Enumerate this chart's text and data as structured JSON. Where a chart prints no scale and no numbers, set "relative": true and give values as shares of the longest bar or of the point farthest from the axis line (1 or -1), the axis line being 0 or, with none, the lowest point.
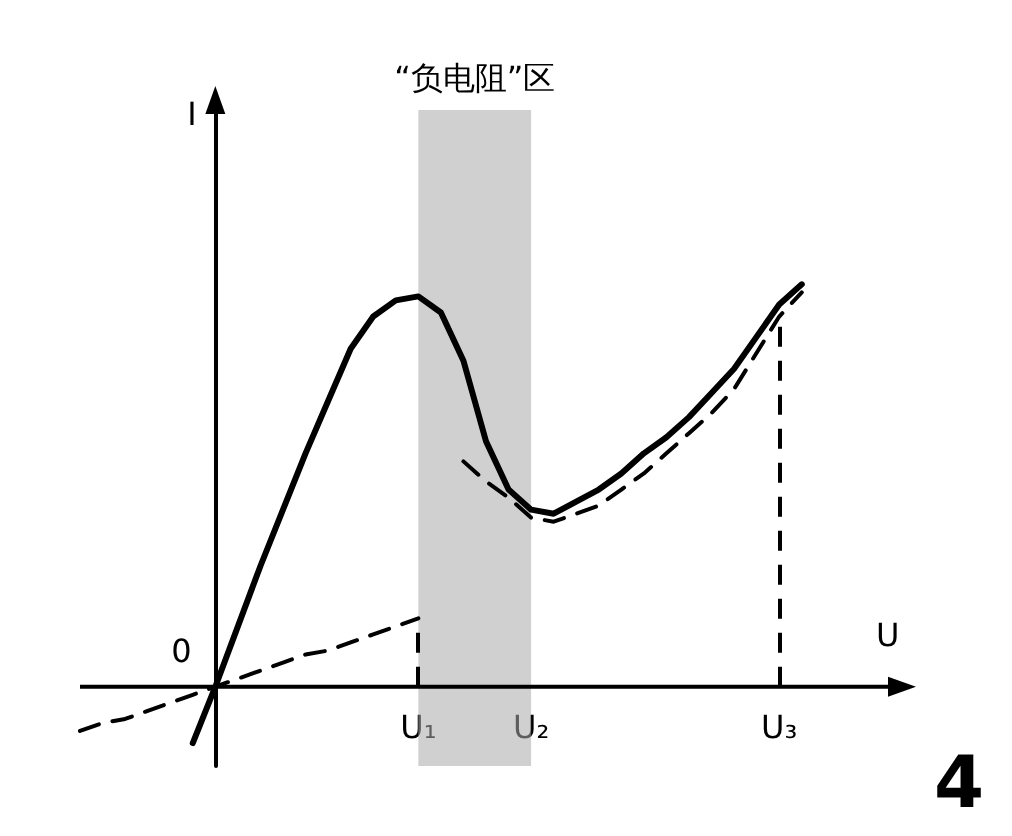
{
  "chart_data": {
    "type": "line",
    "relative": true,
    "xlabel": "U",
    "ylabel": "I",
    "categories": [
      null,
      null,
      null,
      null,
      null,
      null,
      null,
      null,
      null,
      null,
      null,
      null,
      null,
      null,
      null,
      "U₁",
      null,
      null,
      null,
      null,
      "U₂",
      null,
      null,
      null,
      null,
      null,
      null,
      null,
      null,
      null,
      null,
      "U₃",
      null,
      null,
      null,
      null,
      null
    ],
    "tick_labels": "x",
    "grid": false,
    "marker": "none",
    "series": [
      {
        "color": "#000000",
        "line_style": "solid",
        "values": [
          null,
          null,
          null,
          null,
          null,
          -0.14,
          0,
          0.15,
          0.3,
          0.44,
          0.58,
          0.71,
          0.84,
          0.92,
          0.96,
          0.97,
          0.93,
          0.81,
          0.61,
          0.49,
          0.44,
          0.43,
          0.46,
          0.49,
          0.53,
          0.58,
          0.62,
          0.67,
          0.73,
          0.79,
          0.87,
          0.95,
          1.0,
          null,
          null,
          null,
          null
        ]
      },
      {
        "color": "#000000",
        "line_style": "dashed",
        "values": [
          -0.11,
          -0.09,
          -0.08,
          -0.06,
          -0.04,
          -0.02,
          0,
          0.02,
          0.04,
          0.06,
          0.08,
          0.09,
          0.11,
          0.13,
          0.15,
          0.17,
          null,
          null,
          null,
          null,
          null,
          null,
          null,
          null,
          null,
          null,
          null,
          null,
          null,
          null,
          null,
          null,
          null,
          null,
          null,
          null,
          null
        ]
      },
      {
        "color": "#000000",
        "line_style": "dashed",
        "values": [
          null,
          null,
          null,
          null,
          null,
          null,
          null,
          null,
          null,
          null,
          null,
          null,
          null,
          null,
          null,
          null,
          null,
          0.56,
          0.51,
          0.47,
          0.42,
          0.41,
          0.43,
          0.45,
          0.49,
          0.53,
          0.58,
          0.63,
          0.68,
          0.74,
          0.83,
          0.92,
          0.98,
          null,
          null,
          null,
          null
        ]
      }
    ],
    "ref_lines": [
      {
        "axis": "x",
        "value": "U₁",
        "line_style": "dashed",
        "color": "#000000"
      },
      {
        "axis": "x",
        "value": "U₃",
        "line_style": "dashed",
        "color": "#000000"
      }
    ],
    "bands": [
      {
        "axis": "x",
        "from": "U₁",
        "to": "U₂",
        "label": "“负电阻”区",
        "color": "#aaaaaa"
      }
    ],
    "annotations": [
      "0",
      "4"
    ]
  }
}
